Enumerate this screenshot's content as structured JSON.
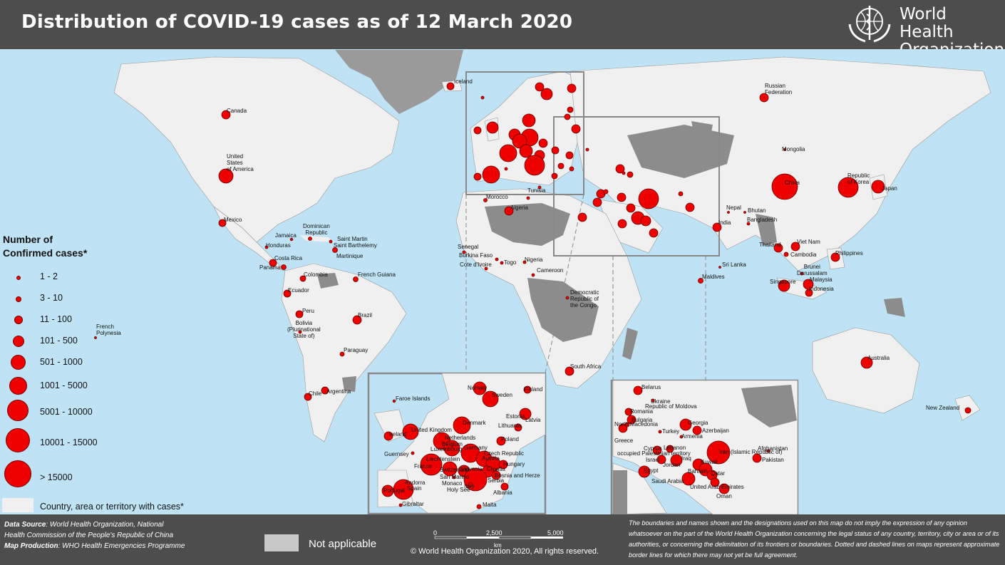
{
  "title": "Distribution of COVID-19  cases as of 12 March 2020",
  "organization": {
    "line1": "World Health",
    "line2": "Organization"
  },
  "legend": {
    "title_line1": "Number of",
    "title_line2": "Confirmed cases*",
    "classes": [
      "1 - 2",
      "3 - 10",
      "11 - 100",
      "101 - 500",
      "501 - 1000",
      "1001 - 5000",
      "5001 - 10000",
      "10001 - 15000",
      "> 15000"
    ],
    "country_with_cases": "Country, area or territory with cases*",
    "not_applicable": "Not applicable"
  },
  "colors": {
    "case_marker": "#ee0000",
    "ocean": "#bfe3f5",
    "land": "#f0f0f0",
    "not_applicable": "#8c8c8c",
    "band": "#4d4d4d"
  },
  "labels": {
    "iceland": "Iceland",
    "canada": "Canada",
    "usa_1": "United",
    "usa_2": "States",
    "usa_3": "of America",
    "mexico": "Mexico",
    "dominican_1": "Dominican",
    "dominican_2": "Republic",
    "jamaica": "Jamaica",
    "saint_martin": "Saint Martin",
    "saint_barthelemy": "Saint Barthelemy",
    "honduras": "Honduras",
    "martinique": "Martinique",
    "costa_rica": "Costa Rica",
    "panama": "Panama",
    "colombia": "Colombia",
    "french_guiana": "French Guiana",
    "ecuador": "Ecuador",
    "peru": "Peru",
    "bolivia_1": "Bolivia",
    "bolivia_2": "(Plurinational",
    "bolivia_3": "State of)",
    "brazil": "Brazil",
    "french_polynesia_1": "French",
    "french_polynesia_2": "Polynesia",
    "paraguay": "Paraguay",
    "chile": "Chile",
    "argentina": "Argentina",
    "morocco": "Morocco",
    "tunisia": "Tunisia",
    "algeria": "Algeria",
    "senegal": "Senegal",
    "burkina_faso": "Burkina Faso",
    "cote_divoire": "Cote d'Ivoire",
    "togo": "Togo",
    "nigeria": "Nigeria",
    "cameroon": "Cameroon",
    "drc_1": "Democratic",
    "drc_2": "Republic of",
    "drc_3": "the Congo",
    "south_africa": "South Africa",
    "russia_1": "Russian",
    "russia_2": "Federation",
    "mongolia": "Mongolia",
    "china": "China",
    "korea_1": "Republic",
    "korea_2": "of Korea",
    "japan": "Japan",
    "nepal": "Nepal",
    "bhutan": "Bhutan",
    "india": "India",
    "bangladesh": "Bangladesh",
    "thailand": "Thailand",
    "viet_nam": "Viet Nam",
    "cambodia": "Cambodia",
    "philippines": "Philippines",
    "sri_lanka": "Sri Lanka",
    "maldives": "Maldives",
    "brunei_1": "Brunei",
    "brunei_2": "Darussalam",
    "malaysia": "Malaysia",
    "singapore": "Singapore",
    "indonesia": "Indonesia",
    "australia": "Australia",
    "new_zealand": "New Zealand"
  },
  "europe_inset": {
    "faroe": "Faroe Islands",
    "norway": "Norway",
    "sweden": "Sweden",
    "finland": "Finland",
    "estonia": "Estonia",
    "latvia": "Latvia",
    "lithuania": "Lithuania",
    "denmark": "Denmark",
    "ireland": "Ireland",
    "uk": "United Kingdom",
    "netherlands": "Netherlands",
    "belgium": "Belgium",
    "luxembourg": "Luxembourg",
    "germany": "Germany",
    "poland": "Poland",
    "guernsey": "Guernsey",
    "czech": "Czech Republic",
    "liechtenstein": "Liechtenstein",
    "austria": "Austria",
    "hungary": "Hungary",
    "france": "France",
    "switzerland": "Switzerland",
    "slovenia": "Slovenia",
    "croatia": "Croatia",
    "bosnia": "Bosnia and Herze",
    "serbia": "Serbia",
    "san_marino": "San Marino",
    "monaco": "Monaco",
    "italy": "Italy",
    "holy_see": "Holy See",
    "albania": "Albania",
    "andorra": "Andorra",
    "spain": "Spain",
    "portugal": "Portugal",
    "gibraltar": "Gibraltar",
    "malta": "Malta"
  },
  "mideast_inset": {
    "belarus": "Belarus",
    "ukraine": "Ukraine",
    "moldova": "Republic of Moldova",
    "romania": "Romania",
    "bulgaria": "Bulgaria",
    "north_macedonia": "North Macedonia",
    "georgia": "Georgia",
    "azerbaijan": "Azerbaijan",
    "armenia": "Armenia",
    "turkey": "Turkey",
    "greece": "Greece",
    "cyprus": "Cyprus",
    "lebanon": "Lebanon",
    "palestine": "occupied Palestinian territory",
    "iraq": "Iraq",
    "israel": "Israel",
    "jordan": "Jordan",
    "iran": "Iran (Islamic Republic of)",
    "afghanistan": "Afghanistan",
    "pakistan": "Pakistan",
    "kuwait": "Kuwait",
    "bahrain": "Bahrain",
    "qatar": "Qatar",
    "egypt": "Egypt",
    "saudi_arabia": "Saudi Arabia",
    "uae": "United Arab Emirates",
    "oman": "Oman"
  },
  "footer": {
    "data_source_label": "Data Source",
    "data_source_line1": ": World Health Organization, National",
    "data_source_line2": "Health Commission of the People's Republic of China",
    "map_production_label": "Map Production",
    "map_production_text": ": WHO Health Emergencies Programme",
    "scale_0": "0",
    "scale_1": "2,500",
    "scale_2": "5,000",
    "scale_unit": "km",
    "copyright": "© World Health Organization  2020,  All rights reserved.",
    "disclaimer": "The boundaries and names shown and the designations used on this map do not imply the expression of any opinion whatsoever on the part of the World Health Organization concerning the legal status of any country, territory, city or area or of its authorities, or concerning the delimitation of its frontiers or boundaries. Dotted and dashed lines on maps represent approximate border lines for which there may not yet be full agreement."
  }
}
